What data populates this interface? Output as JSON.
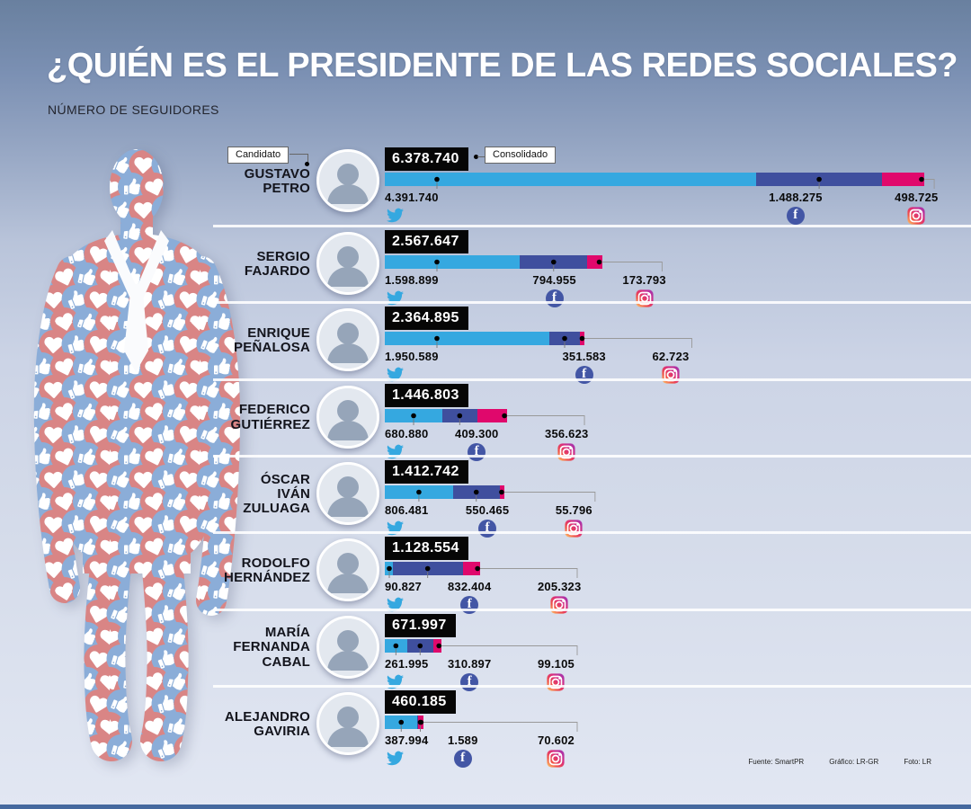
{
  "title": "¿QUIÉN ES EL PRESIDENTE DE LAS REDES SOCIALES?",
  "subtitle": "NÚMERO DE SEGUIDORES",
  "tags": {
    "candidate": "Candidato",
    "consolidated": "Consolidado"
  },
  "footer": {
    "source": "Fuente: SmartPR",
    "graphic": "Gráfico: LR-GR",
    "photo": "Foto: LR"
  },
  "colors": {
    "twitter": "#35A8E0",
    "facebook": "#3F4F9E",
    "instagram": "#E0086C",
    "bar_dot": "#000000",
    "figure_blue": "#8BADD8",
    "figure_red": "#D98585",
    "bg_top": "#69809F",
    "bg_bottom": "#E2E7F3",
    "bottom_strip": "#45699F"
  },
  "icons": [
    "twitter-bird-icon",
    "facebook-icon",
    "instagram-icon"
  ],
  "chart_data": {
    "type": "bar",
    "orientation": "horizontal",
    "stacked": true,
    "title": "¿Quién es el presidente de las redes sociales?",
    "subtitle": "Número de seguidores",
    "unit": "seguidores",
    "series_labels": [
      "Twitter",
      "Facebook",
      "Instagram"
    ],
    "scale_max_total": 6378740,
    "candidates": [
      {
        "name_lines": [
          "GUSTAVO",
          "PETRO"
        ],
        "total_label": "6.378.740",
        "total": 6378740,
        "values": {
          "twitter": 4391740,
          "facebook": 1488275,
          "instagram": 498725
        },
        "labels": {
          "twitter": "4.391.740",
          "facebook": "1.488.275",
          "instagram": "498.725"
        }
      },
      {
        "name_lines": [
          "SERGIO",
          "FAJARDO"
        ],
        "total_label": "2.567.647",
        "total": 2567647,
        "values": {
          "twitter": 1598899,
          "facebook": 794955,
          "instagram": 173793
        },
        "labels": {
          "twitter": "1.598.899",
          "facebook": "794.955",
          "instagram": "173.793"
        }
      },
      {
        "name_lines": [
          "ENRIQUE",
          "PEÑALOSA"
        ],
        "total_label": "2.364.895",
        "total": 2364895,
        "values": {
          "twitter": 1950589,
          "facebook": 351583,
          "instagram": 62723
        },
        "labels": {
          "twitter": "1.950.589",
          "facebook": "351.583",
          "instagram": "62.723"
        }
      },
      {
        "name_lines": [
          "FEDERICO",
          "GUTIÉRREZ"
        ],
        "total_label": "1.446.803",
        "total": 1446803,
        "values": {
          "twitter": 680880,
          "facebook": 409300,
          "instagram": 356623
        },
        "labels": {
          "twitter": "680.880",
          "facebook": "409.300",
          "instagram": "356.623"
        }
      },
      {
        "name_lines": [
          "ÓSCAR",
          "IVÁN",
          "ZULUAGA"
        ],
        "total_label": "1.412.742",
        "total": 1412742,
        "values": {
          "twitter": 806481,
          "facebook": 550465,
          "instagram": 55796
        },
        "labels": {
          "twitter": "806.481",
          "facebook": "550.465",
          "instagram": "55.796"
        }
      },
      {
        "name_lines": [
          "RODOLFO",
          "HERNÁNDEZ"
        ],
        "total_label": "1.128.554",
        "total": 1128554,
        "values": {
          "twitter": 90827,
          "facebook": 832404,
          "instagram": 205323
        },
        "labels": {
          "twitter": "90.827",
          "facebook": "832.404",
          "instagram": "205.323"
        }
      },
      {
        "name_lines": [
          "MARÍA",
          "FERNANDA",
          "CABAL"
        ],
        "total_label": "671.997",
        "total": 671997,
        "values": {
          "twitter": 261995,
          "facebook": 310897,
          "instagram": 99105
        },
        "labels": {
          "twitter": "261.995",
          "facebook": "310.897",
          "instagram": "99.105"
        }
      },
      {
        "name_lines": [
          "ALEJANDRO",
          "GAVIRIA"
        ],
        "total_label": "460.185",
        "total": 460185,
        "values": {
          "twitter": 387994,
          "facebook": 1589,
          "instagram": 70602
        },
        "labels": {
          "twitter": "387.994",
          "facebook": "1.589",
          "instagram": "70.602"
        }
      }
    ]
  }
}
